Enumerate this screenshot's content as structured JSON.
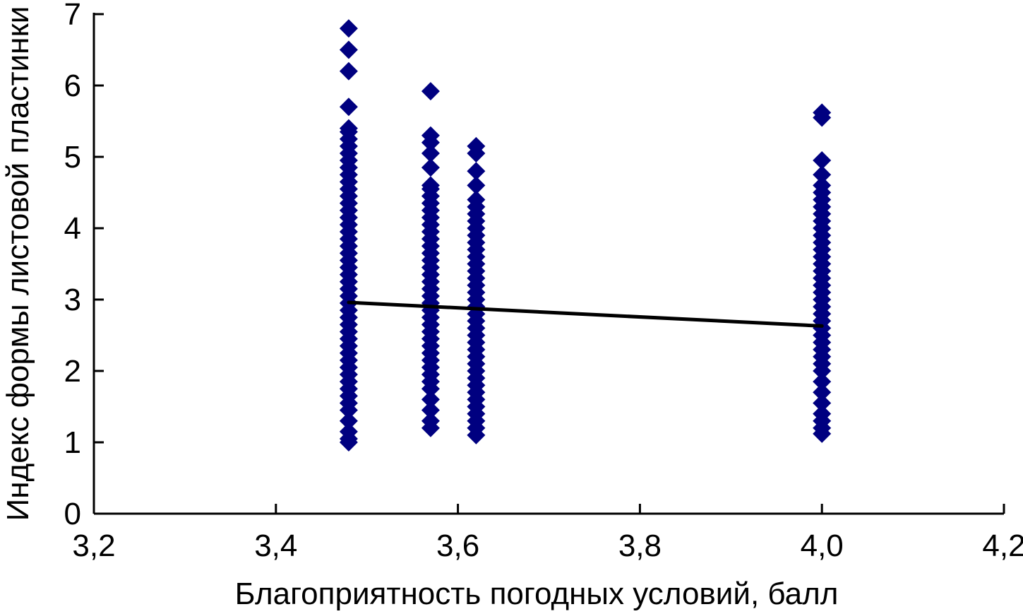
{
  "chart_data": {
    "type": "scatter",
    "title": "",
    "xlabel": "Благоприятность погодных условий, балл",
    "ylabel": "Индекс формы листовой пластинки",
    "xlim": [
      3.2,
      4.2
    ],
    "ylim": [
      0,
      7
    ],
    "x_ticks": [
      "3,2",
      "3,4",
      "3,6",
      "3,8",
      "4,0",
      "4,2"
    ],
    "x_tick_values": [
      3.2,
      3.4,
      3.6,
      3.8,
      4.0,
      4.2
    ],
    "y_ticks": [
      "0",
      "1",
      "2",
      "3",
      "4",
      "5",
      "6",
      "7"
    ],
    "y_tick_values": [
      0,
      1,
      2,
      3,
      4,
      5,
      6,
      7
    ],
    "grid": false,
    "marker": "diamond",
    "point_color": "#000080",
    "line_color": "#000000",
    "groups": [
      {
        "x": 3.48,
        "y": [
          1.0,
          1.05,
          1.15,
          1.3,
          1.45,
          1.55,
          1.65,
          1.75,
          1.85,
          1.95,
          2.05,
          2.15,
          2.25,
          2.35,
          2.45,
          2.55,
          2.65,
          2.75,
          2.85,
          2.95,
          3.05,
          3.15,
          3.25,
          3.35,
          3.45,
          3.55,
          3.65,
          3.75,
          3.85,
          3.95,
          4.05,
          4.15,
          4.25,
          4.35,
          4.45,
          4.55,
          4.65,
          4.75,
          4.85,
          4.95,
          5.05,
          5.15,
          5.25,
          5.35,
          5.4,
          5.7,
          6.2,
          6.5,
          6.8
        ]
      },
      {
        "x": 3.57,
        "y": [
          1.2,
          1.3,
          1.45,
          1.6,
          1.75,
          1.85,
          1.95,
          2.05,
          2.15,
          2.25,
          2.35,
          2.45,
          2.55,
          2.65,
          2.75,
          2.85,
          2.95,
          3.05,
          3.15,
          3.25,
          3.35,
          3.45,
          3.55,
          3.65,
          3.75,
          3.85,
          3.95,
          4.05,
          4.15,
          4.25,
          4.35,
          4.45,
          4.55,
          4.6,
          4.85,
          5.05,
          5.2,
          5.3,
          5.92
        ]
      },
      {
        "x": 3.62,
        "y": [
          1.1,
          1.2,
          1.3,
          1.4,
          1.5,
          1.6,
          1.7,
          1.8,
          1.9,
          2.0,
          2.1,
          2.2,
          2.3,
          2.4,
          2.5,
          2.6,
          2.7,
          2.8,
          2.9,
          3.0,
          3.1,
          3.2,
          3.3,
          3.4,
          3.5,
          3.6,
          3.7,
          3.8,
          3.9,
          4.0,
          4.1,
          4.2,
          4.3,
          4.4,
          4.6,
          4.8,
          5.05,
          5.15
        ]
      },
      {
        "x": 4.0,
        "y": [
          1.12,
          1.2,
          1.3,
          1.4,
          1.55,
          1.7,
          1.85,
          2.0,
          2.1,
          2.2,
          2.3,
          2.4,
          2.5,
          2.6,
          2.7,
          2.8,
          2.9,
          3.0,
          3.1,
          3.2,
          3.3,
          3.4,
          3.5,
          3.6,
          3.7,
          3.8,
          3.9,
          4.0,
          4.1,
          4.2,
          4.3,
          4.4,
          4.5,
          4.6,
          4.75,
          4.95,
          5.55,
          5.62
        ]
      }
    ],
    "trendline": {
      "x": [
        3.48,
        4.0
      ],
      "y": [
        2.96,
        2.63
      ]
    }
  }
}
